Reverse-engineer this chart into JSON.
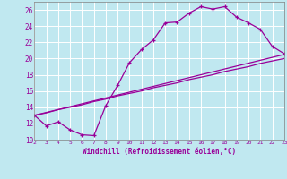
{
  "xlabel": "Windchill (Refroidissement éolien,°C)",
  "bg_color": "#c0e8f0",
  "line_color": "#990099",
  "grid_color": "#ffffff",
  "xmin": 2,
  "xmax": 23,
  "ymin": 10,
  "ymax": 27,
  "line1_x": [
    2,
    3,
    4,
    5,
    6,
    7,
    8,
    9,
    10,
    11,
    12,
    13,
    14,
    15,
    16,
    17,
    18,
    19,
    20,
    21,
    22,
    23
  ],
  "line1_y": [
    13.0,
    11.7,
    12.2,
    11.2,
    10.6,
    10.5,
    14.2,
    16.7,
    19.5,
    21.1,
    22.3,
    24.4,
    24.5,
    25.6,
    26.4,
    26.1,
    26.4,
    25.1,
    24.4,
    23.6,
    21.5,
    20.6
  ],
  "line2_x": [
    2,
    23
  ],
  "line2_y": [
    13.0,
    20.5
  ],
  "line3_x": [
    2,
    3,
    4,
    5,
    6,
    7,
    8,
    9,
    10,
    11,
    12,
    13,
    14,
    15,
    16,
    17,
    18,
    19,
    20,
    21,
    22,
    23
  ],
  "line3_y": [
    13.0,
    13.3,
    13.7,
    14.0,
    14.3,
    14.7,
    15.0,
    15.4,
    15.7,
    16.0,
    16.4,
    16.7,
    17.0,
    17.4,
    17.7,
    18.0,
    18.4,
    18.7,
    19.0,
    19.4,
    19.7,
    20.0
  ]
}
